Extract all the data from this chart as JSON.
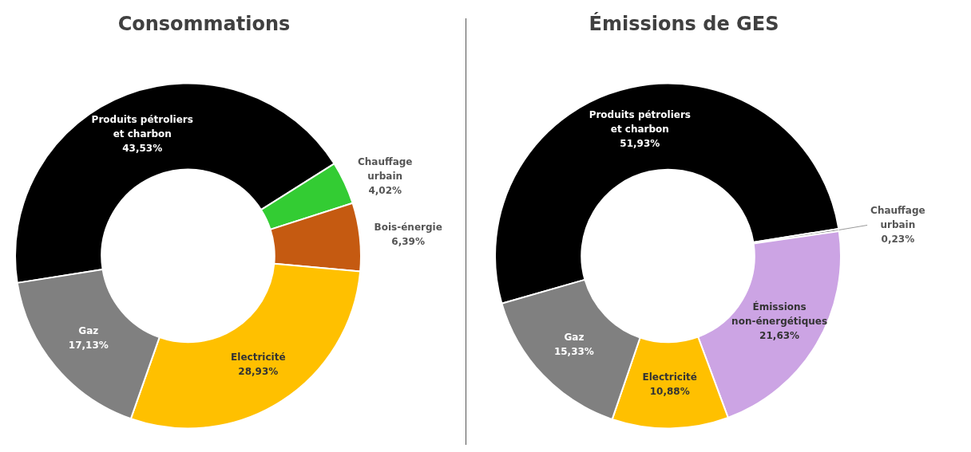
{
  "chart_data": [
    {
      "type": "donut",
      "title": "Consommations",
      "categories": [
        "Produits pétroliers et charbon",
        "Chauffage urbain",
        "Bois-énergie",
        "Electricité",
        "Gaz"
      ],
      "values": [
        43.53,
        4.02,
        6.39,
        28.93,
        17.13
      ],
      "colors": [
        "#000000",
        "#33cc33",
        "#c55a11",
        "#ffc000",
        "#808080"
      ],
      "value_labels": [
        "43,53%",
        "4,02%",
        "6,39%",
        "28,93%",
        "17,13%"
      ],
      "legend": false
    },
    {
      "type": "donut",
      "title": "Émissions de GES",
      "categories": [
        "Produits pétroliers et charbon",
        "Chauffage urbain",
        "Émissions non-énergétiques",
        "Electricité",
        "Gaz"
      ],
      "values": [
        51.93,
        0.23,
        21.63,
        10.88,
        15.33
      ],
      "colors": [
        "#000000",
        "#808080",
        "#cca4e4",
        "#ffc000",
        "#808080"
      ],
      "value_labels": [
        "51,93%",
        "0,23%",
        "21,63%",
        "10,88%",
        "15,33%"
      ],
      "legend": false
    }
  ]
}
